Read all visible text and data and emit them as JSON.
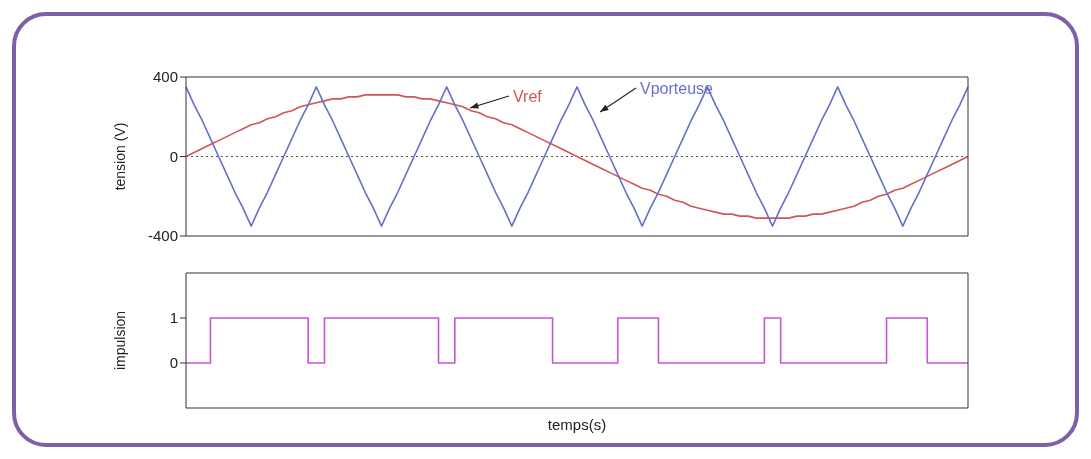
{
  "chart_data": [
    {
      "type": "line",
      "ylabel": "tension (V)",
      "categories": [
        null,
        null,
        null,
        null,
        null,
        null,
        null,
        null,
        null,
        null,
        null,
        null,
        null,
        null,
        null,
        null,
        null,
        null,
        null,
        null,
        null,
        null,
        null,
        null,
        null,
        null,
        null,
        null,
        null,
        null,
        null,
        null,
        null,
        null,
        null,
        null,
        null,
        null,
        null,
        null,
        null,
        null,
        null,
        null,
        null,
        null,
        null,
        null,
        null,
        null,
        null,
        null,
        null,
        null,
        null,
        null,
        null,
        null,
        null,
        null,
        null,
        null,
        null,
        null,
        null,
        null,
        null,
        null,
        null,
        null,
        null,
        null,
        null,
        null,
        null,
        null,
        null,
        null,
        null,
        null,
        null,
        null,
        null,
        null,
        null,
        null,
        null,
        null,
        null,
        null,
        null,
        null,
        null,
        null,
        null,
        null,
        null
      ],
      "series": [
        {
          "name": "Vref",
          "color": "#d05555",
          "values": [
            0,
            20,
            40,
            60,
            80,
            100,
            120,
            140,
            160,
            170,
            190,
            200,
            220,
            230,
            250,
            260,
            270,
            280,
            290,
            290,
            300,
            300,
            310,
            310,
            310,
            310,
            310,
            300,
            300,
            290,
            290,
            280,
            270,
            260,
            250,
            230,
            220,
            200,
            190,
            170,
            160,
            140,
            120,
            100,
            80,
            60,
            40,
            20,
            0,
            -20,
            -40,
            -60,
            -80,
            -100,
            -120,
            -140,
            -160,
            -170,
            -190,
            -200,
            -220,
            -230,
            -250,
            -260,
            -270,
            -280,
            -290,
            -290,
            -300,
            -300,
            -310,
            -310,
            -310,
            -310,
            -310,
            -300,
            -300,
            -290,
            -290,
            -280,
            -270,
            -260,
            -250,
            -230,
            -220,
            -200,
            -190,
            -170,
            -160,
            -140,
            -120,
            -100,
            -80,
            -60,
            -40,
            -20,
            0
          ]
        },
        {
          "name": "Vporteuse",
          "color": "#6670c8",
          "values": [
            350,
            260,
            180,
            90,
            0,
            -90,
            -180,
            -260,
            -350,
            -260,
            -180,
            -90,
            0,
            90,
            180,
            260,
            350,
            260,
            180,
            90,
            0,
            -90,
            -180,
            -260,
            -350,
            -260,
            -180,
            -90,
            0,
            90,
            180,
            260,
            350,
            260,
            180,
            90,
            0,
            -90,
            -180,
            -260,
            -350,
            -260,
            -180,
            -90,
            0,
            90,
            180,
            260,
            350,
            260,
            180,
            90,
            0,
            -90,
            -180,
            -260,
            -350,
            -260,
            -180,
            -90,
            0,
            90,
            180,
            260,
            350,
            260,
            180,
            90,
            0,
            -90,
            -180,
            -260,
            -350,
            -260,
            -180,
            -90,
            0,
            90,
            180,
            260,
            350,
            260,
            180,
            90,
            0,
            -90,
            -180,
            -260,
            -350,
            -260,
            -180,
            -90,
            0,
            90,
            180,
            260,
            350
          ]
        }
      ],
      "ylim": [
        -400,
        400
      ],
      "yticks": [
        -400,
        0,
        400
      ],
      "tick_labels": "y",
      "ref_lines": [
        {
          "axis": "y",
          "value": 0,
          "color": "#555555",
          "line_style": "dotted"
        }
      ]
    },
    {
      "type": "step",
      "ylabel": "impulsion",
      "xlabel": "temps(s)",
      "categories": [
        null,
        null,
        null,
        null,
        null,
        null,
        null,
        null,
        null,
        null,
        null,
        null,
        null,
        null,
        null,
        null,
        null,
        null,
        null,
        null,
        null,
        null,
        null,
        null,
        null,
        null,
        null,
        null,
        null,
        null,
        null,
        null,
        null,
        null,
        null,
        null,
        null,
        null,
        null,
        null,
        null,
        null,
        null,
        null,
        null,
        null,
        null,
        null,
        null,
        null,
        null,
        null,
        null,
        null,
        null,
        null,
        null,
        null,
        null,
        null,
        null,
        null,
        null,
        null,
        null,
        null,
        null,
        null,
        null,
        null,
        null,
        null,
        null,
        null,
        null,
        null,
        null,
        null,
        null,
        null,
        null,
        null,
        null,
        null,
        null,
        null,
        null,
        null,
        null,
        null,
        null,
        null,
        null,
        null,
        null,
        null,
        null
      ],
      "series": [
        {
          "color": "#c555d5",
          "values": [
            0,
            0,
            0,
            1,
            1,
            1,
            1,
            1,
            1,
            1,
            1,
            1,
            1,
            1,
            1,
            0,
            0,
            1,
            1,
            1,
            1,
            1,
            1,
            1,
            1,
            1,
            1,
            1,
            1,
            1,
            1,
            0,
            0,
            1,
            1,
            1,
            1,
            1,
            1,
            1,
            1,
            1,
            1,
            1,
            1,
            0,
            0,
            0,
            0,
            0,
            0,
            0,
            0,
            1,
            1,
            1,
            1,
            1,
            0,
            0,
            0,
            0,
            0,
            0,
            0,
            0,
            0,
            0,
            0,
            0,
            0,
            1,
            1,
            0,
            0,
            0,
            0,
            0,
            0,
            0,
            0,
            0,
            0,
            0,
            0,
            0,
            1,
            1,
            1,
            1,
            1,
            0,
            0,
            0,
            0,
            0,
            0
          ]
        }
      ],
      "ylim": [
        -1,
        2
      ],
      "yticks": [
        0,
        1
      ],
      "tick_labels": "y"
    }
  ]
}
